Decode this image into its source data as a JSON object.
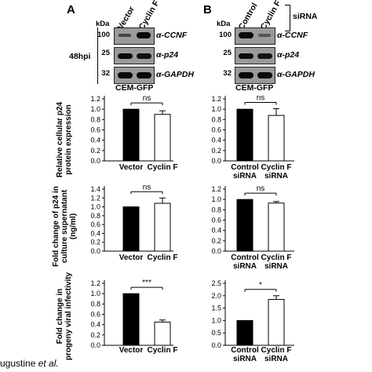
{
  "panels": [
    {
      "letter": "A",
      "lanes": [
        "Vector",
        "Cyclin F"
      ],
      "kda_label": "kDa",
      "timepoint": "48hpi",
      "cell_line": "CEM-GFP",
      "blots": [
        {
          "marker": "100",
          "protein": "α-CCNF"
        },
        {
          "marker": "25",
          "protein": "α-p24"
        },
        {
          "marker": "32",
          "protein": "α-GAPDH"
        }
      ]
    },
    {
      "letter": "B",
      "lanes": [
        "Control",
        "Cyclin F"
      ],
      "treatment": "siRNA",
      "kda_label": "kDa",
      "cell_line": "CEM-GFP",
      "blots": [
        {
          "marker": "100",
          "protein": "α-CCNF"
        },
        {
          "marker": "25",
          "protein": "α-p24"
        },
        {
          "marker": "32",
          "protein": "α-GAPDH"
        }
      ]
    }
  ],
  "row_ylabels": [
    [
      "Relative cellular p24",
      "protein expression"
    ],
    [
      "Fold change of p24 in",
      "culture supernatant",
      "(ng/ml)"
    ],
    [
      "Fold change in",
      "progeny viral infectivity"
    ]
  ],
  "footer": {
    "text": "ugustine ",
    "etal": "et al."
  },
  "chart_data": [
    {
      "type": "bar",
      "id": "A-cellular",
      "categories": [
        [
          "Vector"
        ],
        [
          "Cyclin F"
        ]
      ],
      "values": [
        1.0,
        0.9
      ],
      "errors": [
        0,
        0.07
      ],
      "fills": [
        "#000000",
        "#ffffff"
      ],
      "yticks": [
        "0.0",
        "0.2",
        "0.4",
        "0.6",
        "0.8",
        "1.0",
        "1.2"
      ],
      "ylim": [
        0,
        1.2
      ],
      "sig": "ns"
    },
    {
      "type": "bar",
      "id": "B-cellular",
      "categories": [
        [
          "Control",
          "siRNA"
        ],
        [
          "Cyclin F",
          "siRNA"
        ]
      ],
      "values": [
        1.0,
        0.88
      ],
      "errors": [
        0,
        0.13
      ],
      "fills": [
        "#000000",
        "#ffffff"
      ],
      "yticks": [
        "0.0",
        "0.2",
        "0.4",
        "0.6",
        "0.8",
        "1.0",
        "1.2"
      ],
      "ylim": [
        0,
        1.2
      ],
      "sig": "ns"
    },
    {
      "type": "bar",
      "id": "A-supernatant",
      "categories": [
        [
          "Vector"
        ],
        [
          "Cyclin F"
        ]
      ],
      "values": [
        1.0,
        1.08
      ],
      "errors": [
        0,
        0.12
      ],
      "fills": [
        "#000000",
        "#ffffff"
      ],
      "yticks": [
        "0.0",
        "0.2",
        "0.4",
        "0.6",
        "0.8",
        "1.0",
        "1.2",
        "1.4"
      ],
      "ylim": [
        0,
        1.4
      ],
      "sig": "ns"
    },
    {
      "type": "bar",
      "id": "B-supernatant",
      "categories": [
        [
          "Control",
          "siRNA"
        ],
        [
          "Cyclin F",
          "siRNA"
        ]
      ],
      "values": [
        1.0,
        0.93
      ],
      "errors": [
        0,
        0.03
      ],
      "fills": [
        "#000000",
        "#ffffff"
      ],
      "yticks": [
        "0.0",
        "0.2",
        "0.4",
        "0.6",
        "0.8",
        "1.0",
        "1.2"
      ],
      "ylim": [
        0,
        1.2
      ],
      "sig": "ns"
    },
    {
      "type": "bar",
      "id": "A-infectivity",
      "categories": [
        [
          "Vector"
        ],
        [
          "Cyclin F"
        ]
      ],
      "values": [
        1.0,
        0.45
      ],
      "errors": [
        0,
        0.04
      ],
      "fills": [
        "#000000",
        "#ffffff"
      ],
      "yticks": [
        "0.0",
        "0.2",
        "0.4",
        "0.6",
        "0.8",
        "1.0",
        "1.2"
      ],
      "ylim": [
        0,
        1.2
      ],
      "sig": "***"
    },
    {
      "type": "bar",
      "id": "B-infectivity",
      "categories": [
        [
          "Control",
          "siRNA"
        ],
        [
          "Cyclin F",
          "siRNA"
        ]
      ],
      "values": [
        1.0,
        1.85
      ],
      "errors": [
        0,
        0.15
      ],
      "fills": [
        "#000000",
        "#ffffff"
      ],
      "yticks": [
        "0.0",
        "0.5",
        "1.0",
        "1.5",
        "2.0",
        "2.5"
      ],
      "ylim": [
        0,
        2.5
      ],
      "sig": "*"
    }
  ]
}
